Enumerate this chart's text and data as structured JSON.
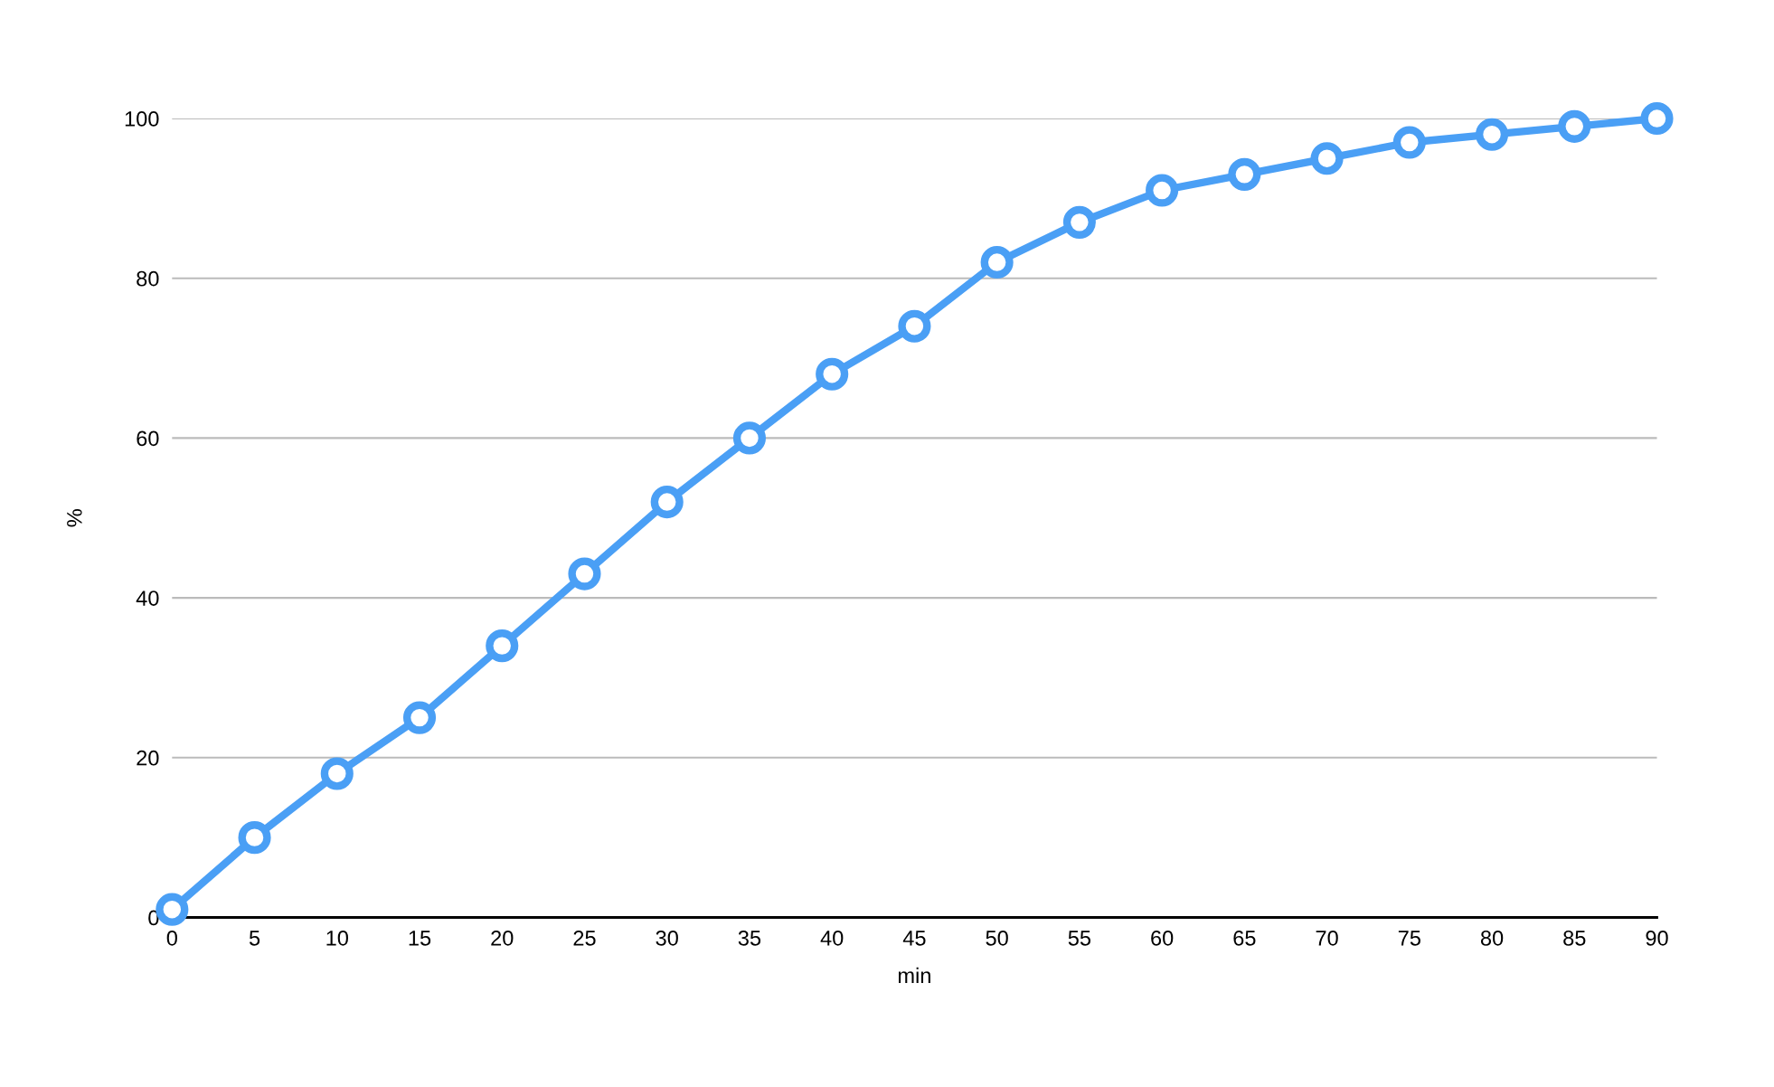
{
  "chart_data": {
    "type": "line",
    "xlabel": "min",
    "ylabel": "%",
    "x": [
      0,
      5,
      10,
      15,
      20,
      25,
      30,
      35,
      40,
      45,
      50,
      55,
      60,
      65,
      70,
      75,
      80,
      85,
      90
    ],
    "series": [
      {
        "color": "#4a9ff5",
        "values": [
          1,
          10,
          18,
          25,
          34,
          43,
          52,
          60,
          68,
          74,
          82,
          87,
          91,
          93,
          95,
          97,
          98,
          99,
          100
        ]
      }
    ],
    "xlim": [
      0,
      90
    ],
    "xticks": [
      0,
      5,
      10,
      15,
      20,
      25,
      30,
      35,
      40,
      45,
      50,
      55,
      60,
      65,
      70,
      75,
      80,
      85,
      90
    ],
    "ylim": [
      0,
      100
    ],
    "yticks": [
      0,
      20,
      40,
      60,
      80,
      100
    ],
    "grid": "y",
    "marker": "circle",
    "line_style": "solid"
  }
}
